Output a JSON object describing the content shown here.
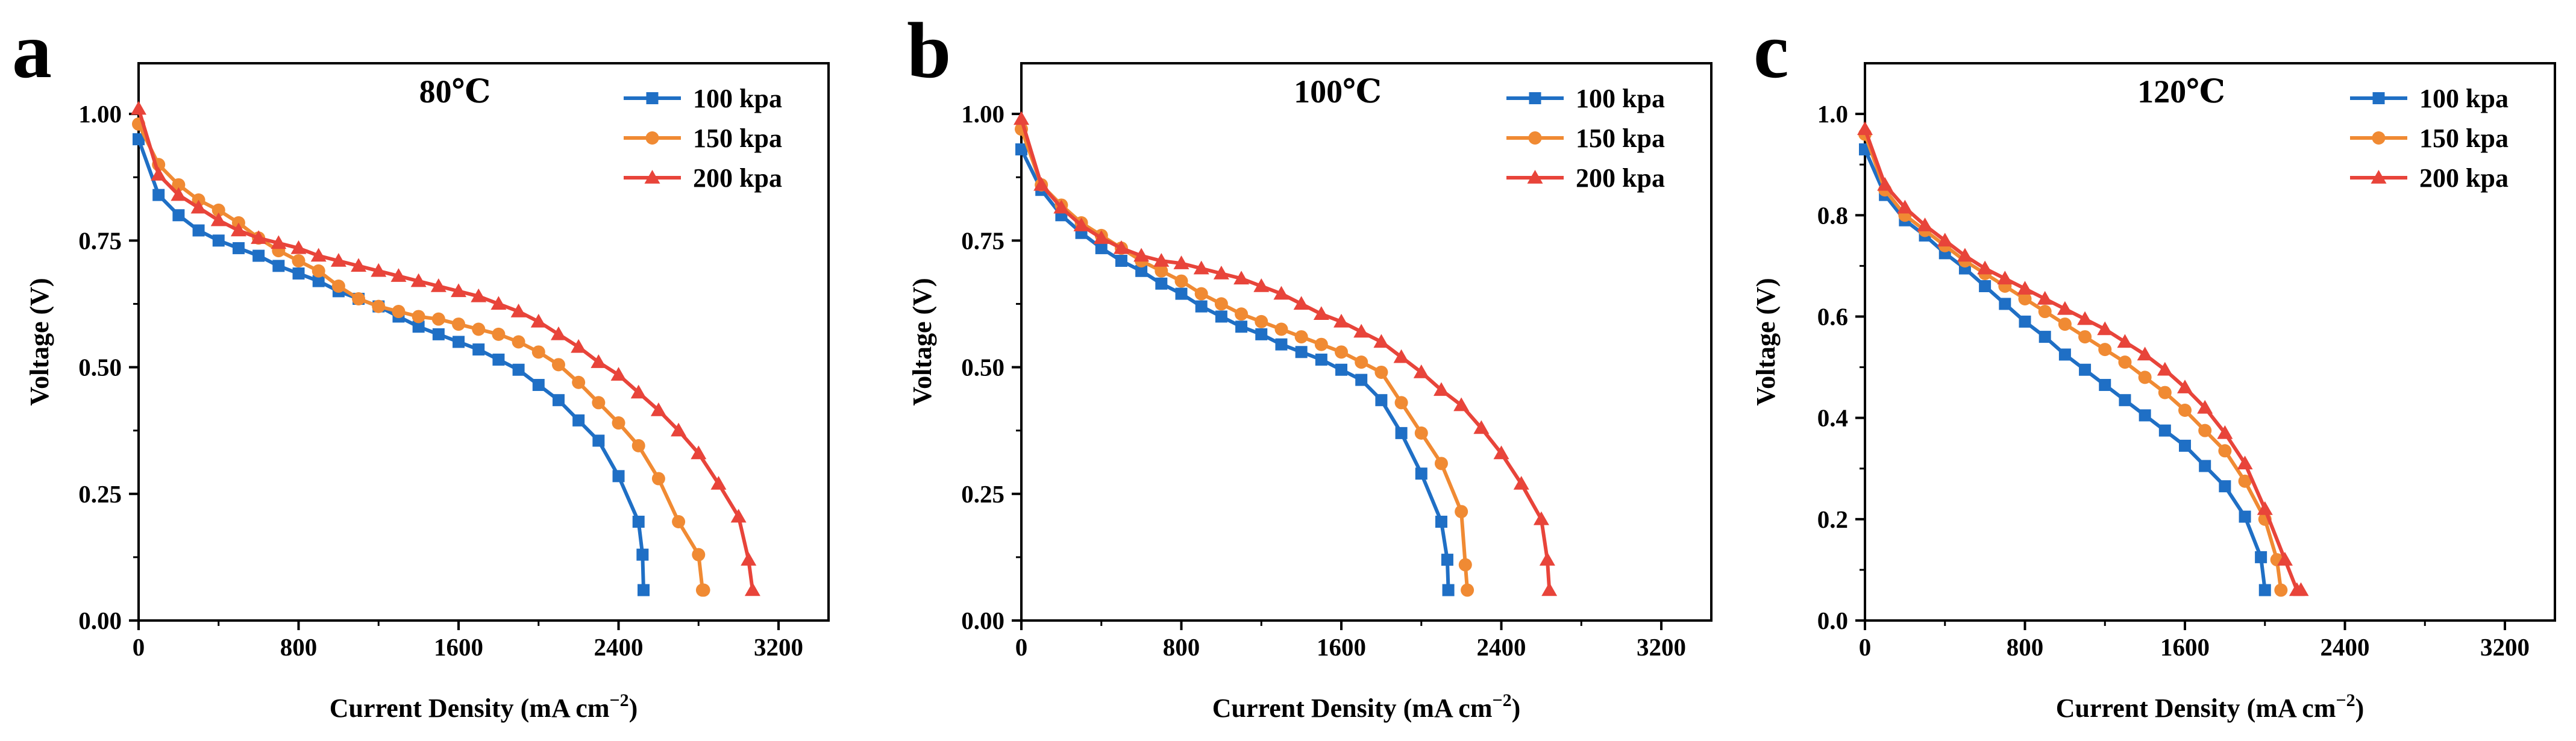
{
  "figure": {
    "description_labels": [
      "a",
      "b",
      "c"
    ]
  },
  "chart_data": [
    {
      "panel": "a",
      "type": "line",
      "title": "80℃",
      "xlabel": "Current Density (mA cm⁻²)",
      "ylabel": "Voltage (V)",
      "xlim": [
        0,
        3450
      ],
      "ylim": [
        0,
        1.1
      ],
      "xticks": [
        0,
        800,
        1600,
        2400,
        3200
      ],
      "xticklabels": [
        "0",
        "800",
        "1600",
        "2400",
        "3200"
      ],
      "yticks": [
        0,
        0.25,
        0.5,
        0.75,
        1.0
      ],
      "yticklabels": [
        "0.00",
        "0.25",
        "0.50",
        "0.75",
        "1.00"
      ],
      "legend_position": "top-right",
      "series": [
        {
          "name": "100 kpa",
          "color": "#1f6fc5",
          "marker": "square",
          "x": [
            0,
            100,
            200,
            300,
            400,
            500,
            600,
            700,
            800,
            900,
            1000,
            1100,
            1200,
            1300,
            1400,
            1500,
            1600,
            1700,
            1800,
            1900,
            2000,
            2100,
            2200,
            2300,
            2400,
            2500,
            2520,
            2525
          ],
          "y": [
            0.95,
            0.84,
            0.8,
            0.77,
            0.75,
            0.735,
            0.72,
            0.7,
            0.685,
            0.67,
            0.65,
            0.635,
            0.62,
            0.6,
            0.58,
            0.565,
            0.55,
            0.535,
            0.515,
            0.495,
            0.465,
            0.435,
            0.395,
            0.355,
            0.285,
            0.195,
            0.13,
            0.06
          ]
        },
        {
          "name": "150 kpa",
          "color": "#f08a33",
          "marker": "circle",
          "x": [
            0,
            100,
            200,
            300,
            400,
            500,
            600,
            700,
            800,
            900,
            1000,
            1100,
            1200,
            1300,
            1400,
            1500,
            1600,
            1700,
            1800,
            1900,
            2000,
            2100,
            2200,
            2300,
            2400,
            2500,
            2600,
            2700,
            2800,
            2820,
            2825
          ],
          "y": [
            0.98,
            0.9,
            0.86,
            0.83,
            0.81,
            0.785,
            0.755,
            0.73,
            0.71,
            0.69,
            0.66,
            0.635,
            0.62,
            0.61,
            0.6,
            0.595,
            0.585,
            0.575,
            0.565,
            0.55,
            0.53,
            0.505,
            0.47,
            0.43,
            0.39,
            0.345,
            0.28,
            0.195,
            0.13,
            0.06,
            0.06
          ]
        },
        {
          "name": "200 kpa",
          "color": "#e8443a",
          "marker": "triangle",
          "x": [
            0,
            100,
            200,
            300,
            400,
            500,
            600,
            700,
            800,
            900,
            1000,
            1100,
            1200,
            1300,
            1400,
            1500,
            1600,
            1700,
            1800,
            1900,
            2000,
            2100,
            2200,
            2300,
            2400,
            2500,
            2600,
            2700,
            2800,
            2900,
            3000,
            3050,
            3070
          ],
          "y": [
            1.01,
            0.88,
            0.84,
            0.815,
            0.79,
            0.77,
            0.755,
            0.745,
            0.735,
            0.72,
            0.71,
            0.7,
            0.69,
            0.68,
            0.67,
            0.66,
            0.65,
            0.64,
            0.625,
            0.61,
            0.59,
            0.565,
            0.54,
            0.51,
            0.485,
            0.45,
            0.415,
            0.375,
            0.33,
            0.27,
            0.205,
            0.12,
            0.06
          ]
        }
      ]
    },
    {
      "panel": "b",
      "type": "line",
      "title": "100℃",
      "xlabel": "Current Density (mA cm⁻²)",
      "ylabel": "Voltage (V)",
      "xlim": [
        0,
        3450
      ],
      "ylim": [
        0,
        1.1
      ],
      "xticks": [
        0,
        800,
        1600,
        2400,
        3200
      ],
      "xticklabels": [
        "0",
        "800",
        "1600",
        "2400",
        "3200"
      ],
      "yticks": [
        0,
        0.25,
        0.5,
        0.75,
        1.0
      ],
      "yticklabels": [
        "0.00",
        "0.25",
        "0.50",
        "0.75",
        "1.00"
      ],
      "legend_position": "top-right",
      "series": [
        {
          "name": "100 kpa",
          "color": "#1f6fc5",
          "marker": "square",
          "x": [
            0,
            100,
            200,
            300,
            400,
            500,
            600,
            700,
            800,
            900,
            1000,
            1100,
            1200,
            1300,
            1400,
            1500,
            1600,
            1700,
            1800,
            1900,
            2000,
            2100,
            2130,
            2135
          ],
          "y": [
            0.93,
            0.85,
            0.8,
            0.765,
            0.735,
            0.71,
            0.69,
            0.665,
            0.645,
            0.62,
            0.6,
            0.58,
            0.565,
            0.545,
            0.53,
            0.515,
            0.495,
            0.475,
            0.435,
            0.37,
            0.29,
            0.195,
            0.12,
            0.06
          ]
        },
        {
          "name": "150 kpa",
          "color": "#f08a33",
          "marker": "circle",
          "x": [
            0,
            100,
            200,
            300,
            400,
            500,
            600,
            700,
            800,
            900,
            1000,
            1100,
            1200,
            1300,
            1400,
            1500,
            1600,
            1700,
            1800,
            1900,
            2000,
            2100,
            2200,
            2220,
            2230
          ],
          "y": [
            0.97,
            0.86,
            0.82,
            0.785,
            0.76,
            0.735,
            0.71,
            0.69,
            0.67,
            0.645,
            0.625,
            0.605,
            0.59,
            0.575,
            0.56,
            0.545,
            0.53,
            0.51,
            0.49,
            0.43,
            0.37,
            0.31,
            0.215,
            0.11,
            0.06
          ]
        },
        {
          "name": "200 kpa",
          "color": "#e8443a",
          "marker": "triangle",
          "x": [
            0,
            100,
            200,
            300,
            400,
            500,
            600,
            700,
            800,
            900,
            1000,
            1100,
            1200,
            1300,
            1400,
            1500,
            1600,
            1700,
            1800,
            1900,
            2000,
            2100,
            2200,
            2300,
            2400,
            2500,
            2600,
            2630,
            2640
          ],
          "y": [
            0.99,
            0.86,
            0.815,
            0.78,
            0.755,
            0.735,
            0.72,
            0.71,
            0.705,
            0.695,
            0.685,
            0.675,
            0.66,
            0.645,
            0.625,
            0.605,
            0.59,
            0.57,
            0.55,
            0.52,
            0.49,
            0.455,
            0.425,
            0.38,
            0.33,
            0.27,
            0.2,
            0.12,
            0.06
          ]
        }
      ]
    },
    {
      "panel": "c",
      "type": "line",
      "title": "120℃",
      "xlabel": "Current Density (mA cm⁻²)",
      "ylabel": "Voltage (V)",
      "xlim": [
        0,
        3450
      ],
      "ylim": [
        0,
        1.1
      ],
      "xticks": [
        0,
        800,
        1600,
        2400,
        3200
      ],
      "xticklabels": [
        "0",
        "800",
        "1600",
        "2400",
        "3200"
      ],
      "yticks": [
        0,
        0.2,
        0.4,
        0.6,
        0.8,
        1.0
      ],
      "yticklabels": [
        "0.0",
        "0.2",
        "0.4",
        "0.6",
        "0.8",
        "1.0"
      ],
      "legend_position": "top-right",
      "series": [
        {
          "name": "100 kpa",
          "color": "#1f6fc5",
          "marker": "square",
          "x": [
            0,
            100,
            200,
            300,
            400,
            500,
            600,
            700,
            800,
            900,
            1000,
            1100,
            1200,
            1300,
            1400,
            1500,
            1600,
            1700,
            1800,
            1900,
            1980,
            2000
          ],
          "y": [
            0.93,
            0.84,
            0.79,
            0.76,
            0.725,
            0.695,
            0.66,
            0.625,
            0.59,
            0.56,
            0.525,
            0.495,
            0.465,
            0.435,
            0.405,
            0.375,
            0.345,
            0.305,
            0.265,
            0.205,
            0.125,
            0.06
          ]
        },
        {
          "name": "150 kpa",
          "color": "#f08a33",
          "marker": "circle",
          "x": [
            0,
            100,
            200,
            300,
            400,
            500,
            600,
            700,
            800,
            900,
            1000,
            1100,
            1200,
            1300,
            1400,
            1500,
            1600,
            1700,
            1800,
            1900,
            2000,
            2060,
            2080
          ],
          "y": [
            0.96,
            0.85,
            0.8,
            0.77,
            0.74,
            0.71,
            0.685,
            0.66,
            0.635,
            0.61,
            0.585,
            0.56,
            0.535,
            0.51,
            0.48,
            0.45,
            0.415,
            0.375,
            0.335,
            0.275,
            0.2,
            0.12,
            0.06
          ]
        },
        {
          "name": "200 kpa",
          "color": "#e8443a",
          "marker": "triangle",
          "x": [
            0,
            100,
            200,
            300,
            400,
            500,
            600,
            700,
            800,
            900,
            1000,
            1100,
            1200,
            1300,
            1400,
            1500,
            1600,
            1700,
            1800,
            1900,
            2000,
            2100,
            2160,
            2180
          ],
          "y": [
            0.97,
            0.86,
            0.815,
            0.78,
            0.75,
            0.72,
            0.695,
            0.675,
            0.655,
            0.635,
            0.615,
            0.595,
            0.575,
            0.55,
            0.525,
            0.495,
            0.46,
            0.42,
            0.37,
            0.31,
            0.22,
            0.12,
            0.06,
            0.06
          ]
        }
      ]
    }
  ]
}
